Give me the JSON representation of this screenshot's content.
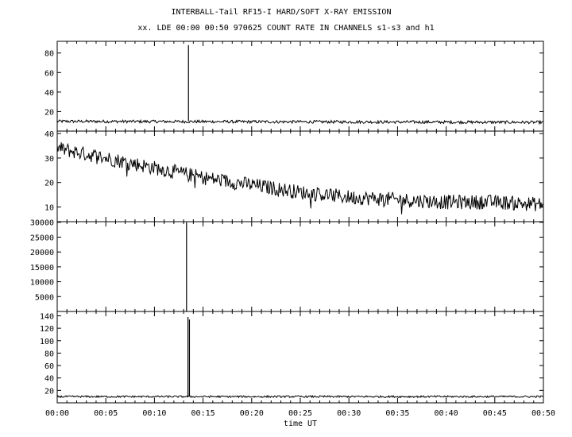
{
  "chart_data": {
    "type": "line",
    "title": "INTERBALL-Tail RF15-I HARD/SOFT X-RAY EMISSION",
    "subtitle": "xx. LDE 00:00 00:50 970625  COUNT RATE IN CHANNELS s1-s3 and h1",
    "xlabel": "time UT",
    "x_ticks": [
      "00:00",
      "00:05",
      "00:10",
      "00:15",
      "00:20",
      "00:25",
      "00:30",
      "00:35",
      "00:40",
      "00:45",
      "00:50"
    ],
    "xlim": [
      0,
      50
    ],
    "x_unit": "minutes after 00:00 UT",
    "panels": [
      {
        "ylim": [
          0,
          92
        ],
        "y_ticks": [
          "20",
          "40",
          "60",
          "80"
        ],
        "y_tick_values": [
          20,
          40,
          60,
          80
        ],
        "baseline": {
          "start": 10,
          "end": 9,
          "noise": 1.5
        },
        "spikes": [
          {
            "x": 13.5,
            "y": 88
          }
        ]
      },
      {
        "ylim": [
          4,
          41
        ],
        "y_ticks": [
          "10",
          "20",
          "30",
          "40"
        ],
        "y_tick_values": [
          10,
          20,
          30,
          40
        ],
        "trend": [
          [
            0,
            34
          ],
          [
            5,
            30
          ],
          [
            10,
            26
          ],
          [
            15,
            22
          ],
          [
            20,
            19
          ],
          [
            25,
            16
          ],
          [
            30,
            14
          ],
          [
            35,
            13
          ],
          [
            40,
            12
          ],
          [
            45,
            12
          ],
          [
            50,
            11
          ]
        ],
        "noise": 3
      },
      {
        "ylim": [
          0,
          30200
        ],
        "y_ticks": [
          "5000",
          "10000",
          "15000",
          "20000",
          "25000",
          "30000"
        ],
        "y_tick_values": [
          5000,
          10000,
          15000,
          20000,
          25000,
          30000
        ],
        "baseline": {
          "start": 0,
          "end": 0,
          "noise": 0
        },
        "spikes": [
          {
            "x": 13.3,
            "y": 30000
          }
        ]
      },
      {
        "ylim": [
          0,
          147
        ],
        "y_ticks": [
          "20",
          "40",
          "60",
          "80",
          "100",
          "120",
          "140"
        ],
        "y_tick_values": [
          20,
          40,
          60,
          80,
          100,
          120,
          140
        ],
        "baseline": {
          "start": 10,
          "end": 10,
          "noise": 1.5
        },
        "spikes": [
          {
            "x": 13.45,
            "y": 138
          },
          {
            "x": 13.6,
            "y": 134
          }
        ]
      }
    ]
  }
}
